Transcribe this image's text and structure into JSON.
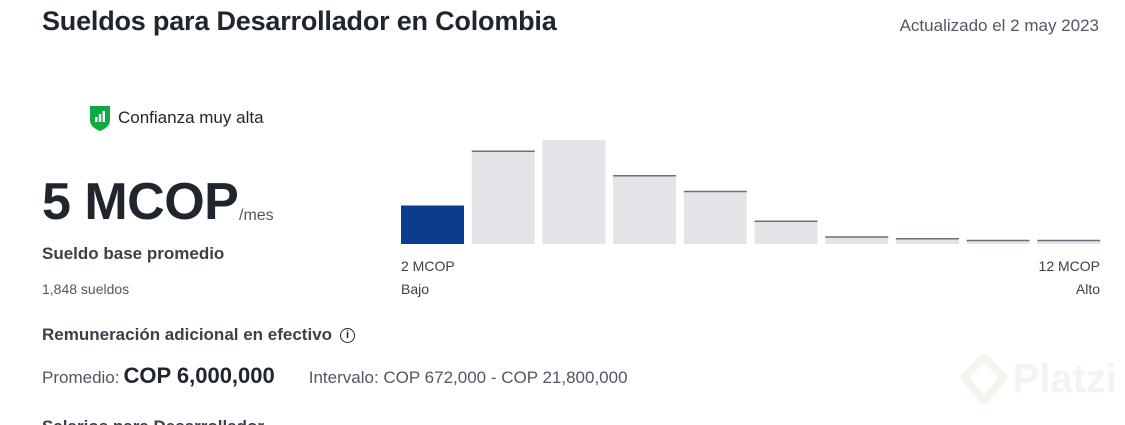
{
  "header": {
    "title": "Sueldos para Desarrollador en Colombia",
    "updated": "Actualizado el 2 may 2023"
  },
  "confidence": {
    "label": "Confianza muy alta",
    "icon": "shield-bar-chart-icon",
    "color": "#0caa41"
  },
  "salary": {
    "value": "5 MCOP",
    "unit": "/mes",
    "caption": "Sueldo base promedio",
    "count": "1,848 sueldos"
  },
  "chart_data": {
    "type": "bar",
    "values": [
      0.22,
      0.53,
      0.62,
      0.39,
      0.3,
      0.13,
      0.04,
      0.03,
      0.02,
      0.02
    ],
    "highlight_index": 0,
    "highlight_color": "#0c3c8c",
    "bar_color": "#e3e4e8",
    "bar_top_color": "#6b7078",
    "x_min_label": "2 MCOP",
    "x_max_label": "12 MCOP",
    "low_label": "Bajo",
    "high_label": "Alto"
  },
  "extra": {
    "title": "Remuneración adicional en efectivo",
    "info_icon": "info-icon",
    "avg_label": "Promedio:",
    "avg_value": "COP 6,000,000",
    "range": "Intervalo: COP 672,000 - COP 21,800,000"
  },
  "watermark": {
    "text": "Platzi"
  },
  "next_section_partial": "Salarios para Desarrollador"
}
